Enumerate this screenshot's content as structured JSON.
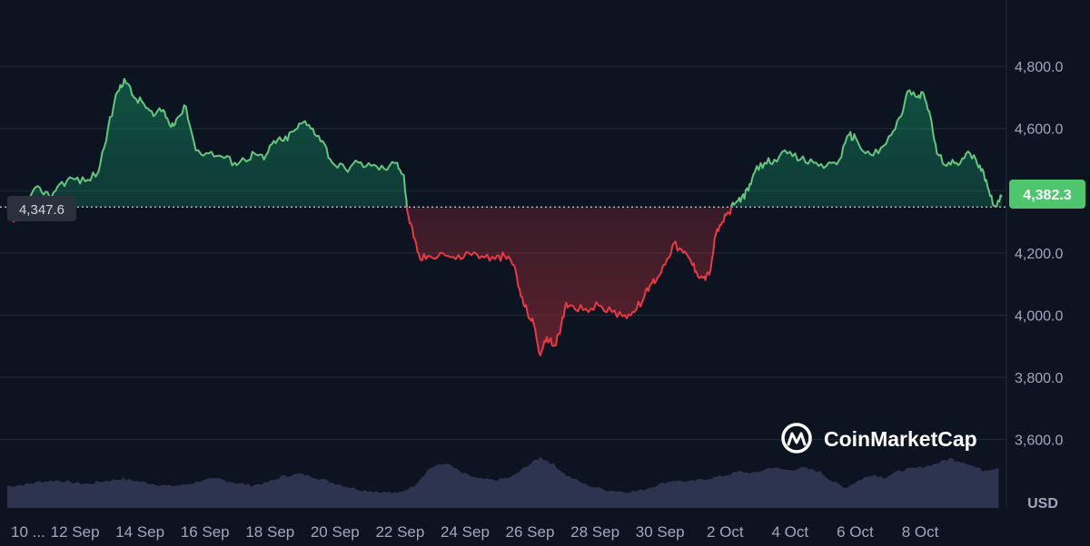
{
  "chart_data": {
    "type": "area",
    "currency_label": "USD",
    "watermark": "CoinMarketCap",
    "y_ticks": [
      "3,600.0",
      "3,800.0",
      "4,000.0",
      "4,200.0",
      "4,600.0",
      "4,800.0"
    ],
    "y_tick_values": [
      3600,
      3800,
      4000,
      4200,
      4600,
      4800
    ],
    "ylim": [
      3380,
      4990
    ],
    "x_ticks": [
      "10 ...",
      "12 Sep",
      "14 Sep",
      "16 Sep",
      "18 Sep",
      "20 Sep",
      "22 Sep",
      "24 Sep",
      "26 Sep",
      "28 Sep",
      "30 Sep",
      "2 Oct",
      "4 Oct",
      "6 Oct",
      "8 Oct"
    ],
    "x_tick_days": [
      0,
      2,
      4,
      6,
      8,
      10,
      12,
      14,
      16,
      18,
      20,
      22,
      24,
      26,
      28
    ],
    "baseline_value": 4347.6,
    "baseline_label": "4,347.6",
    "last_value": 4382.3,
    "last_label": "4,382.3",
    "colors": {
      "up": "#16c784",
      "up_line": "#65c77c",
      "down": "#ea3943",
      "grid": "#222b38",
      "volume": "#2d344f",
      "background": "#0d1421",
      "badge_up": "#4ec66e"
    },
    "series": [
      {
        "values": [
          [
            0.0,
            4340
          ],
          [
            0.2,
            4300
          ],
          [
            0.4,
            4330
          ],
          [
            0.7,
            4380
          ],
          [
            1.0,
            4410
          ],
          [
            1.3,
            4380
          ],
          [
            1.6,
            4420
          ],
          [
            2.0,
            4440
          ],
          [
            2.4,
            4430
          ],
          [
            2.8,
            4460
          ],
          [
            3.1,
            4600
          ],
          [
            3.4,
            4720
          ],
          [
            3.6,
            4760
          ],
          [
            3.9,
            4700
          ],
          [
            4.2,
            4680
          ],
          [
            4.5,
            4640
          ],
          [
            4.8,
            4660
          ],
          [
            5.0,
            4610
          ],
          [
            5.2,
            4630
          ],
          [
            5.5,
            4670
          ],
          [
            5.8,
            4530
          ],
          [
            6.2,
            4520
          ],
          [
            6.6,
            4510
          ],
          [
            7.0,
            4490
          ],
          [
            7.3,
            4500
          ],
          [
            7.6,
            4520
          ],
          [
            7.9,
            4500
          ],
          [
            8.2,
            4560
          ],
          [
            8.5,
            4560
          ],
          [
            8.8,
            4590
          ],
          [
            9.1,
            4620
          ],
          [
            9.4,
            4600
          ],
          [
            9.7,
            4560
          ],
          [
            10.0,
            4490
          ],
          [
            10.4,
            4470
          ],
          [
            10.8,
            4490
          ],
          [
            11.2,
            4480
          ],
          [
            11.6,
            4470
          ],
          [
            12.0,
            4490
          ],
          [
            12.2,
            4450
          ],
          [
            12.3,
            4340
          ],
          [
            12.5,
            4250
          ],
          [
            12.7,
            4180
          ],
          [
            13.0,
            4190
          ],
          [
            13.4,
            4200
          ],
          [
            13.8,
            4180
          ],
          [
            14.2,
            4200
          ],
          [
            14.6,
            4190
          ],
          [
            15.0,
            4180
          ],
          [
            15.3,
            4190
          ],
          [
            15.6,
            4160
          ],
          [
            15.8,
            4060
          ],
          [
            16.0,
            4010
          ],
          [
            16.2,
            3970
          ],
          [
            16.4,
            3870
          ],
          [
            16.6,
            3930
          ],
          [
            16.8,
            3900
          ],
          [
            17.0,
            3940
          ],
          [
            17.2,
            4040
          ],
          [
            17.4,
            4030
          ],
          [
            17.8,
            4020
          ],
          [
            18.2,
            4030
          ],
          [
            18.6,
            4010
          ],
          [
            19.0,
            4000
          ],
          [
            19.3,
            4010
          ],
          [
            19.6,
            4060
          ],
          [
            19.8,
            4100
          ],
          [
            20.0,
            4120
          ],
          [
            20.3,
            4180
          ],
          [
            20.5,
            4230
          ],
          [
            20.8,
            4200
          ],
          [
            21.0,
            4180
          ],
          [
            21.2,
            4140
          ],
          [
            21.4,
            4120
          ],
          [
            21.6,
            4130
          ],
          [
            21.8,
            4260
          ],
          [
            22.0,
            4300
          ],
          [
            22.2,
            4330
          ],
          [
            22.4,
            4360
          ],
          [
            22.6,
            4380
          ],
          [
            22.8,
            4400
          ],
          [
            23.0,
            4460
          ],
          [
            23.3,
            4490
          ],
          [
            23.6,
            4500
          ],
          [
            24.0,
            4520
          ],
          [
            24.4,
            4500
          ],
          [
            24.8,
            4490
          ],
          [
            25.2,
            4480
          ],
          [
            25.6,
            4500
          ],
          [
            25.9,
            4580
          ],
          [
            26.1,
            4570
          ],
          [
            26.4,
            4520
          ],
          [
            26.8,
            4520
          ],
          [
            27.2,
            4580
          ],
          [
            27.5,
            4640
          ],
          [
            27.7,
            4720
          ],
          [
            28.0,
            4700
          ],
          [
            28.2,
            4710
          ],
          [
            28.4,
            4640
          ],
          [
            28.6,
            4520
          ],
          [
            28.9,
            4480
          ],
          [
            29.2,
            4490
          ],
          [
            29.5,
            4520
          ],
          [
            29.8,
            4500
          ],
          [
            30.0,
            4470
          ],
          [
            30.2,
            4400
          ],
          [
            30.4,
            4350
          ],
          [
            30.6,
            4380
          ]
        ]
      }
    ],
    "volume": [
      [
        0.0,
        0.3
      ],
      [
        0.5,
        0.32
      ],
      [
        1.0,
        0.36
      ],
      [
        1.5,
        0.38
      ],
      [
        2.0,
        0.35
      ],
      [
        2.5,
        0.33
      ],
      [
        3.0,
        0.37
      ],
      [
        3.5,
        0.4
      ],
      [
        4.0,
        0.37
      ],
      [
        4.5,
        0.33
      ],
      [
        5.0,
        0.3
      ],
      [
        5.5,
        0.32
      ],
      [
        6.0,
        0.38
      ],
      [
        6.5,
        0.4
      ],
      [
        7.0,
        0.35
      ],
      [
        7.5,
        0.31
      ],
      [
        8.0,
        0.35
      ],
      [
        8.5,
        0.44
      ],
      [
        9.0,
        0.47
      ],
      [
        9.5,
        0.42
      ],
      [
        10.0,
        0.35
      ],
      [
        10.5,
        0.29
      ],
      [
        11.0,
        0.24
      ],
      [
        11.5,
        0.22
      ],
      [
        12.0,
        0.2
      ],
      [
        12.5,
        0.3
      ],
      [
        13.0,
        0.55
      ],
      [
        13.5,
        0.62
      ],
      [
        14.0,
        0.48
      ],
      [
        14.5,
        0.4
      ],
      [
        15.0,
        0.38
      ],
      [
        15.5,
        0.42
      ],
      [
        16.0,
        0.58
      ],
      [
        16.4,
        0.7
      ],
      [
        16.8,
        0.6
      ],
      [
        17.2,
        0.45
      ],
      [
        17.8,
        0.32
      ],
      [
        18.4,
        0.25
      ],
      [
        19.0,
        0.22
      ],
      [
        19.5,
        0.24
      ],
      [
        20.0,
        0.32
      ],
      [
        20.5,
        0.38
      ],
      [
        21.0,
        0.36
      ],
      [
        21.5,
        0.4
      ],
      [
        22.0,
        0.44
      ],
      [
        22.5,
        0.5
      ],
      [
        23.0,
        0.48
      ],
      [
        23.5,
        0.56
      ],
      [
        24.0,
        0.52
      ],
      [
        24.5,
        0.55
      ],
      [
        25.0,
        0.5
      ],
      [
        25.4,
        0.36
      ],
      [
        25.8,
        0.28
      ],
      [
        26.2,
        0.38
      ],
      [
        26.6,
        0.46
      ],
      [
        27.0,
        0.42
      ],
      [
        27.5,
        0.52
      ],
      [
        28.0,
        0.55
      ],
      [
        28.5,
        0.6
      ],
      [
        29.0,
        0.68
      ],
      [
        29.5,
        0.62
      ],
      [
        30.0,
        0.52
      ],
      [
        30.5,
        0.55
      ]
    ]
  }
}
